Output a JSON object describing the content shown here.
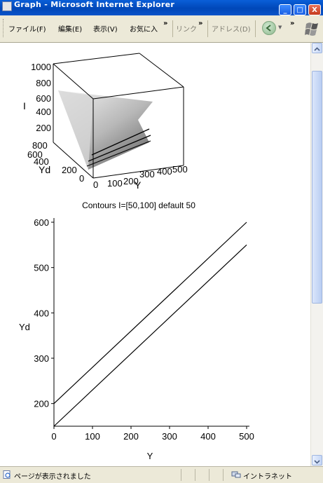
{
  "window": {
    "title": "Graph - Microsoft Internet Explorer",
    "minimize_glyph": "_",
    "maximize_glyph": "□",
    "close_glyph": "X"
  },
  "menu": {
    "file": "ファイル(F)",
    "edit": "編集(E)",
    "view": "表示(V)",
    "favorites": "お気に入",
    "links": "リンク",
    "address": "アドレス(D)",
    "chevron": "»"
  },
  "surface_plot": {
    "z_label": "I",
    "y_label": "Yd",
    "x_label": "Y",
    "z_ticks": [
      "1000",
      "800",
      "600",
      "400",
      "200"
    ],
    "y_ticks": [
      "800",
      "600",
      "400",
      "200",
      "0"
    ],
    "x_ticks": [
      "0",
      "100",
      "200",
      "300",
      "400",
      "500"
    ]
  },
  "contour_title": "Contours I=[50,100] default 50",
  "chart_data": {
    "type": "line",
    "title": "Contours I=[50,100] default 50",
    "xlabel": "Y",
    "ylabel": "Yd",
    "xlim": [
      0,
      500
    ],
    "ylim": [
      150,
      600
    ],
    "x_ticks": [
      "0",
      "100",
      "200",
      "300",
      "400",
      "500"
    ],
    "y_ticks": [
      "200",
      "300",
      "400",
      "500",
      "600"
    ],
    "series": [
      {
        "x": [
          0,
          500
        ],
        "y": [
          200,
          600
        ]
      },
      {
        "x": [
          0,
          500
        ],
        "y": [
          150,
          550
        ]
      }
    ],
    "grid": false,
    "legend": "none"
  },
  "status": {
    "text": "ページが表示されました",
    "zone": "イントラネット"
  },
  "icons": {
    "ie_page": "ie-page-icon",
    "back": "back-arrow-icon",
    "windows_logo": "windows-flag-icon",
    "intranet": "intranet-zone-icon"
  }
}
